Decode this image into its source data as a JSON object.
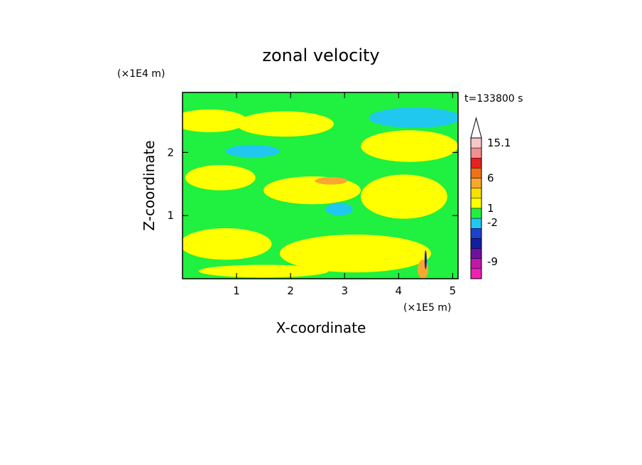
{
  "chart_data": {
    "type": "heatmap",
    "title": "zonal velocity",
    "xlabel": "X-coordinate",
    "ylabel": "Z-coordinate",
    "x_unit": "(×1E5 m)",
    "y_unit": "(×1E4 m)",
    "time_label": "t=133800 s",
    "xlim": [
      0,
      5.1
    ],
    "ylim": [
      0,
      2.95
    ],
    "x_ticks": [
      "1",
      "2",
      "3",
      "4",
      "5"
    ],
    "y_ticks": [
      "1",
      "2"
    ],
    "x_tick_values": [
      1,
      2,
      3,
      4,
      5
    ],
    "y_tick_values": [
      1,
      2
    ],
    "background_level": "green",
    "colorbar": {
      "levels_high_to_low": [
        {
          "color": "#f8c8c8"
        },
        {
          "color": "#f09090"
        },
        {
          "color": "#e82020"
        },
        {
          "color": "#f07018"
        },
        {
          "color": "#f8a830"
        },
        {
          "color": "#f8e000"
        },
        {
          "color": "#ffff00"
        },
        {
          "color": "#20f040"
        },
        {
          "color": "#20c8f0"
        },
        {
          "color": "#2040d0"
        },
        {
          "color": "#1020a0"
        },
        {
          "color": "#7010a0"
        },
        {
          "color": "#c018a8"
        },
        {
          "color": "#f020b0"
        }
      ],
      "labels": [
        "15.1",
        "6",
        "1",
        "-2",
        "-9"
      ]
    },
    "features": [
      {
        "level": "orange",
        "x": 0.3,
        "z": 2.55,
        "rx": 0.45,
        "rz": 0.09
      },
      {
        "level": "yellow",
        "x": 0.5,
        "z": 2.5,
        "rx": 0.7,
        "rz": 0.18
      },
      {
        "level": "orange",
        "x": 1.6,
        "z": 2.45,
        "rx": 0.55,
        "rz": 0.08
      },
      {
        "level": "yellow",
        "x": 1.9,
        "z": 2.45,
        "rx": 0.9,
        "rz": 0.2
      },
      {
        "level": "blue",
        "x": 4.35,
        "z": 2.55,
        "rx": 0.75,
        "rz": 0.1
      },
      {
        "level": "navy",
        "x": 4.6,
        "z": 2.5,
        "rx": 0.3,
        "rz": 0.06
      },
      {
        "level": "cyan",
        "x": 4.3,
        "z": 2.55,
        "rx": 0.85,
        "rz": 0.16
      },
      {
        "level": "blue",
        "x": 1.3,
        "z": 2.02,
        "rx": 0.35,
        "rz": 0.05
      },
      {
        "level": "cyan",
        "x": 1.3,
        "z": 2.02,
        "rx": 0.5,
        "rz": 0.1
      },
      {
        "level": "orange",
        "x": 4.5,
        "z": 2.1,
        "rx": 0.55,
        "rz": 0.08
      },
      {
        "level": "yellow",
        "x": 4.2,
        "z": 2.1,
        "rx": 0.9,
        "rz": 0.25
      },
      {
        "level": "yellow",
        "x": 0.7,
        "z": 1.6,
        "rx": 0.65,
        "rz": 0.2
      },
      {
        "level": "yellow",
        "x": 2.4,
        "z": 1.4,
        "rx": 0.9,
        "rz": 0.22
      },
      {
        "level": "orange",
        "x": 2.75,
        "z": 1.55,
        "rx": 0.3,
        "rz": 0.06
      },
      {
        "level": "cyan",
        "x": 2.9,
        "z": 1.1,
        "rx": 0.25,
        "rz": 0.1
      },
      {
        "level": "yellow",
        "x": 4.1,
        "z": 1.3,
        "rx": 0.8,
        "rz": 0.35
      },
      {
        "level": "yellow",
        "x": 0.8,
        "z": 0.55,
        "rx": 0.85,
        "rz": 0.25
      },
      {
        "level": "yellow",
        "x": 3.2,
        "z": 0.4,
        "rx": 1.4,
        "rz": 0.3
      },
      {
        "level": "yellow",
        "x": 1.5,
        "z": 0.12,
        "rx": 1.2,
        "rz": 0.1
      },
      {
        "level": "orange",
        "x": 4.45,
        "z": 0.15,
        "rx": 0.1,
        "rz": 0.15
      },
      {
        "level": "navy",
        "x": 4.5,
        "z": 0.3,
        "rx": 0.02,
        "rz": 0.15
      }
    ]
  }
}
